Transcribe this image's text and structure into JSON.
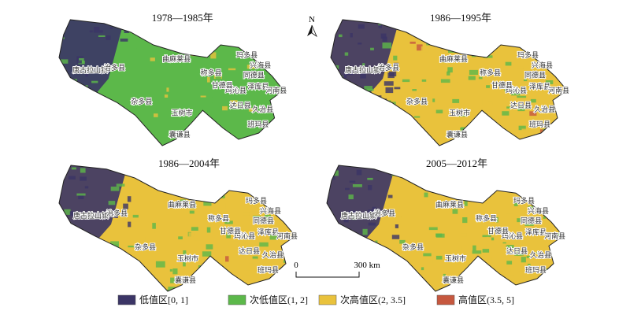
{
  "panels": [
    {
      "title": "1978—1985年"
    },
    {
      "title": "1986—1995年"
    },
    {
      "title": "1986—2004年"
    },
    {
      "title": "2005—2012年"
    }
  ],
  "county_labels": [
    "唐古拉山镇",
    "治多县",
    "曲麻莱县",
    "杂多县",
    "玉树市",
    "囊谦县",
    "称多县",
    "玛多县",
    "兴海县",
    "同德县",
    "泽库县",
    "河南县",
    "玛沁县",
    "甘德县",
    "达日县",
    "久治县",
    "班玛县"
  ],
  "legend": [
    {
      "label": "低值区[0, 1]",
      "color": "#3b3566"
    },
    {
      "label": "次低值区(1, 2]",
      "color": "#5cb84a"
    },
    {
      "label": "次高值区(2, 3.5]",
      "color": "#e9c23c"
    },
    {
      "label": "高值区(3.5, 5]",
      "color": "#c6583f"
    }
  ],
  "scale_bar": {
    "start": "0",
    "end": "300 km"
  },
  "north_label": "N"
}
